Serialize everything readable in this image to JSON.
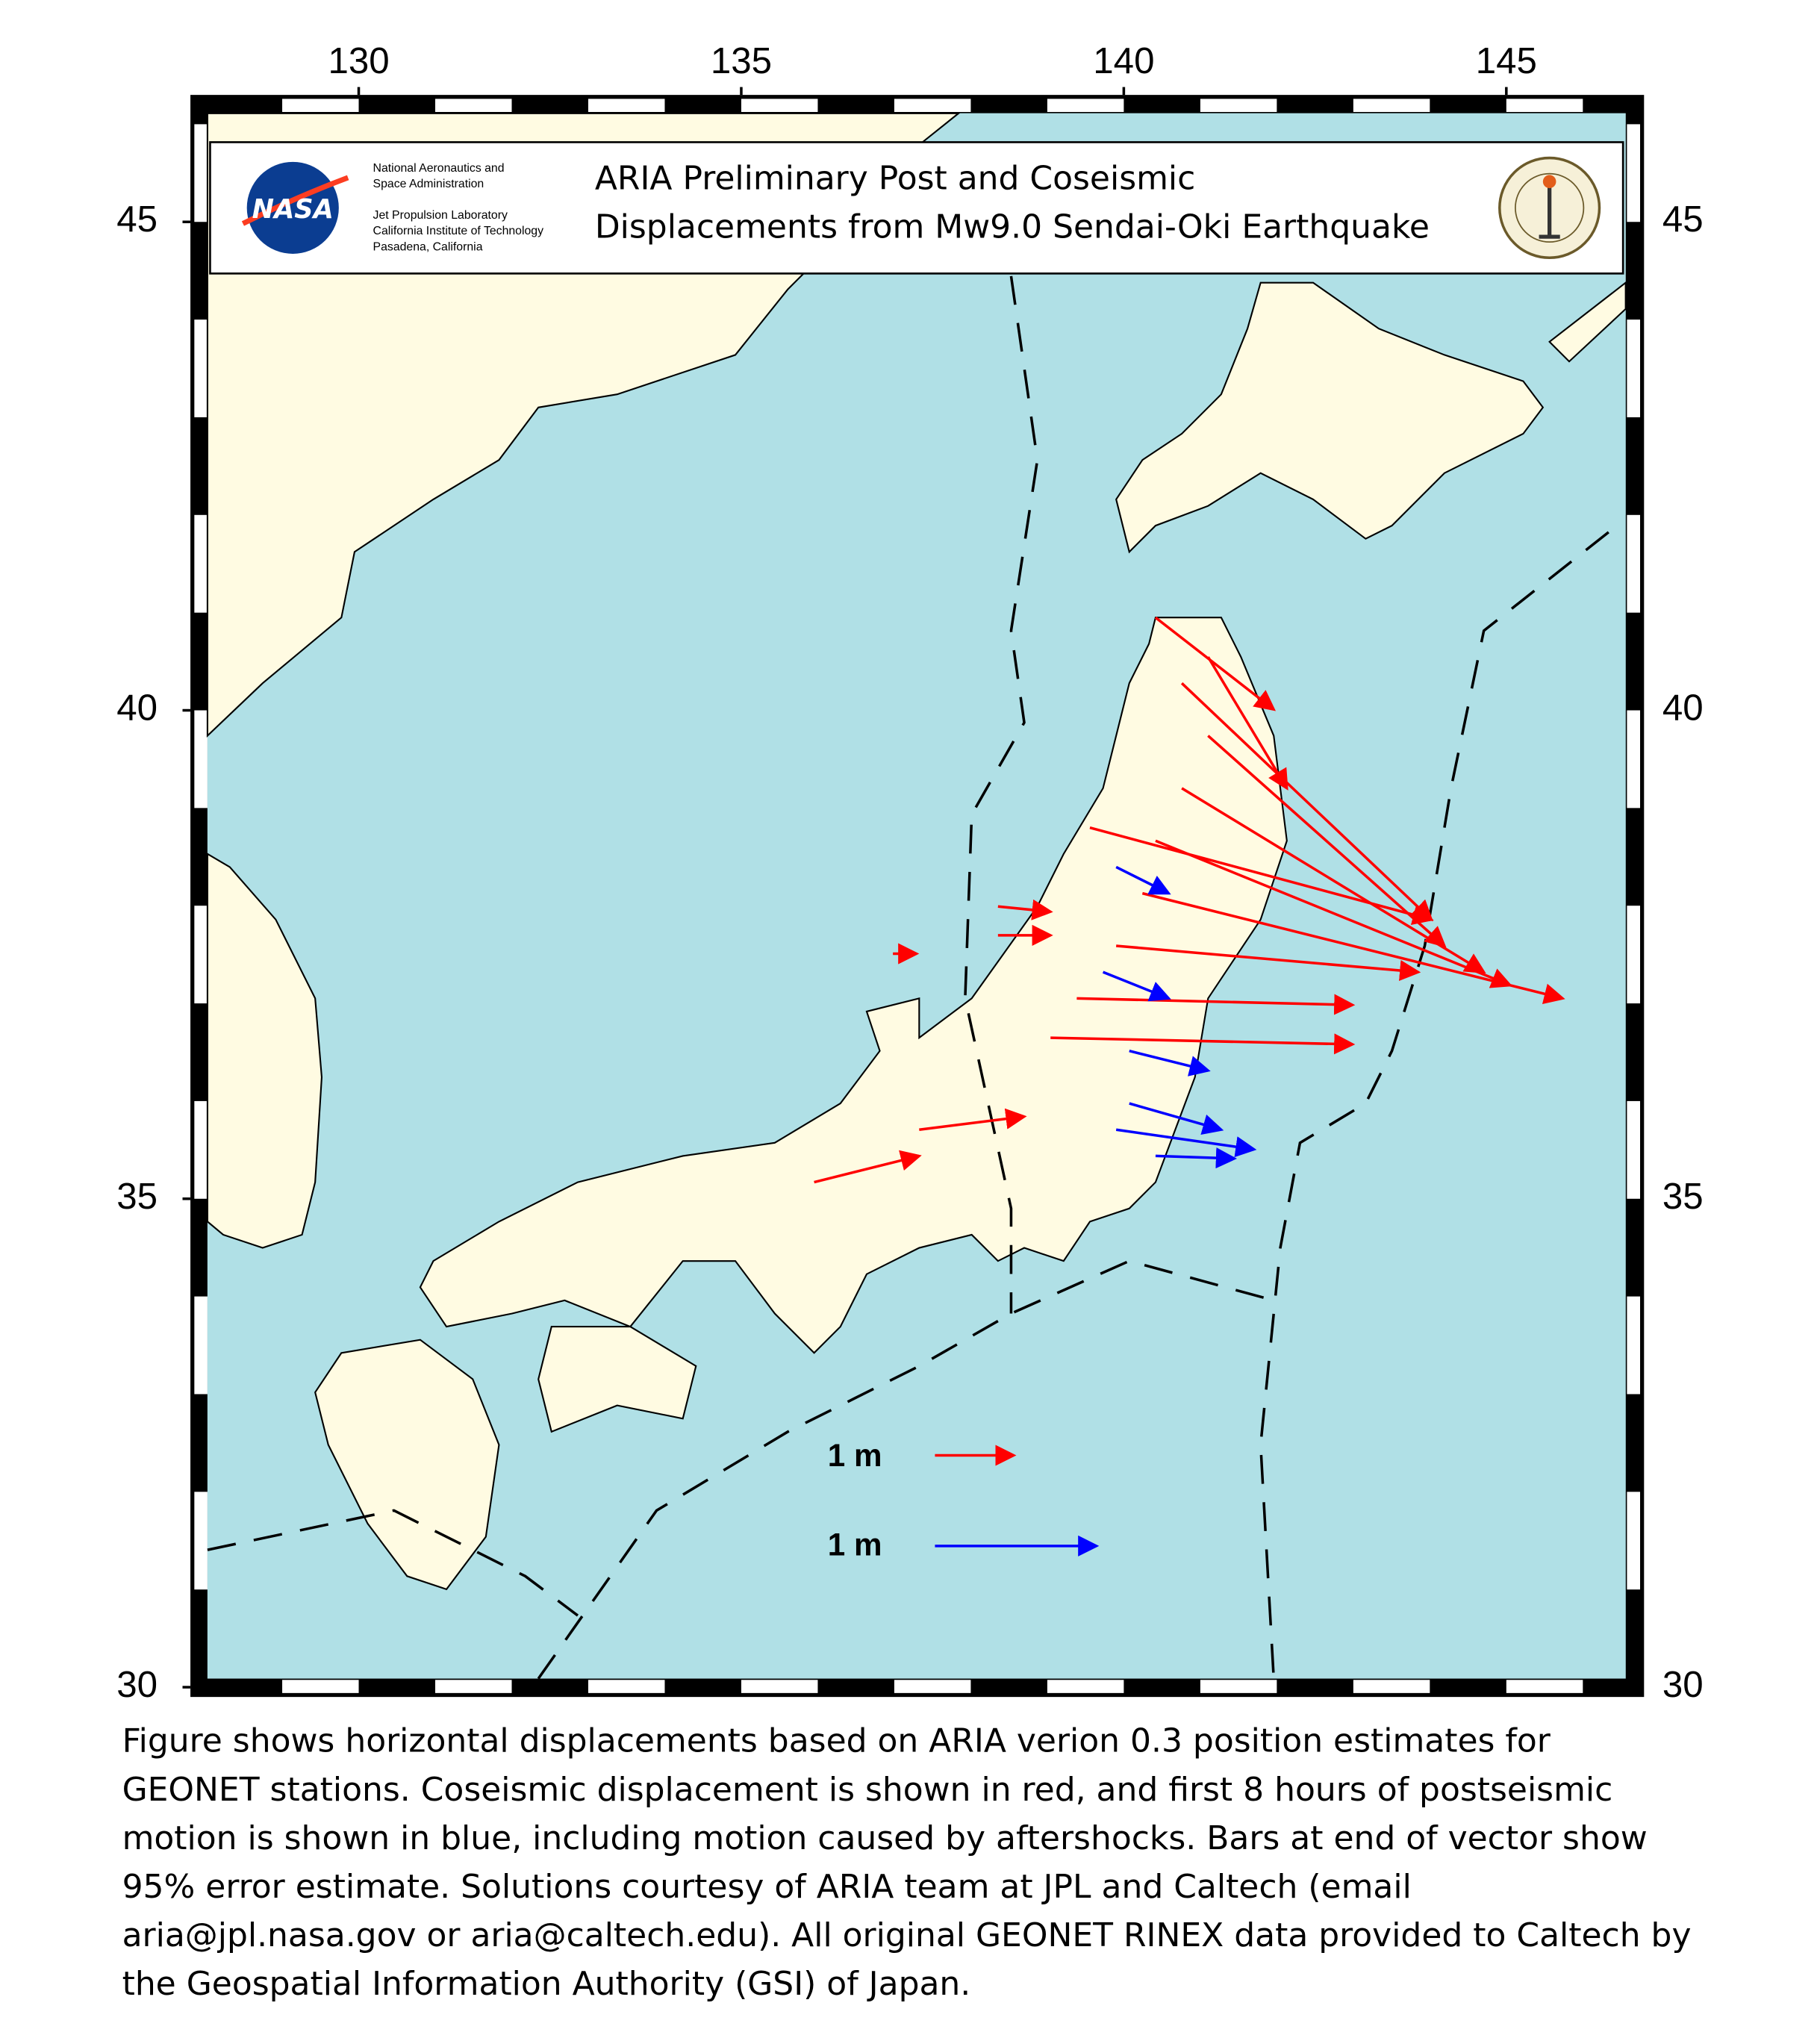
{
  "map": {
    "lonlim": [
      127.8,
      146.8
    ],
    "latlim": [
      29.9,
      46.3
    ],
    "lon_ticks": [
      130,
      135,
      140,
      145
    ],
    "lat_ticks": [
      45,
      40,
      35,
      30
    ]
  },
  "header": {
    "title": [
      "ARIA Preliminary Post and Coseismic",
      "Displacements from Mw9.0 Sendai-Oki Earthquake"
    ],
    "nasa": "NASA",
    "agency": [
      "National Aeronautics and",
      "Space Administration",
      "Jet Propulsion Laboratory",
      "California Institute of Technology",
      "Pasadena, California"
    ]
  },
  "legend": {
    "coseismic": "1 m",
    "postseismic": "1 m"
  },
  "caption": [
    "Figure shows horizontal displacements based on ARIA verion 0.3 position estimates for",
    "GEONET stations. Coseismic displacement is shown in red, and first 8 hours of postseismic",
    "motion is shown in blue, including motion caused by aftershocks.  Bars at end of vector show",
    "95% error estimate. Solutions courtesy of ARIA team at JPL and Caltech (email",
    "aria@jpl.nasa.gov or aria@caltech.edu). All original GEONET RINEX data provided to Caltech by",
    "the Geospatial Information Authority (GSI) of Japan."
  ]
}
